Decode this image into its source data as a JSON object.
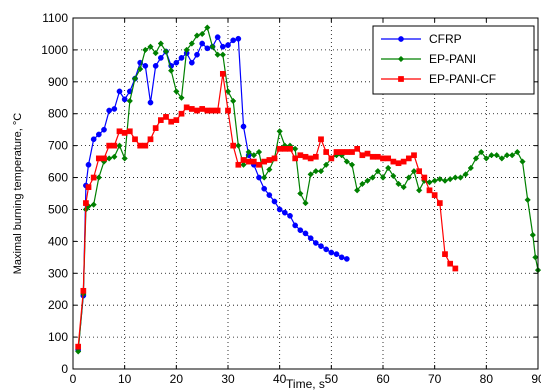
{
  "chart_data": {
    "type": "line",
    "title": "",
    "xlabel": "Time, s",
    "ylabel": "Maximal burning temperature, °C",
    "xlim": [
      0,
      90
    ],
    "ylim": [
      0,
      1100
    ],
    "xticks": [
      0,
      10,
      20,
      30,
      40,
      50,
      60,
      70,
      80,
      90
    ],
    "yticks": [
      0,
      100,
      200,
      300,
      400,
      500,
      600,
      700,
      800,
      900,
      1000,
      1100
    ],
    "grid": true,
    "legend_position": "top-right",
    "series": [
      {
        "name": "CFRP",
        "color": "#0000ff",
        "marker": "circle",
        "points": [
          [
            1,
            60
          ],
          [
            2,
            230
          ],
          [
            2.5,
            575
          ],
          [
            3,
            640
          ],
          [
            4,
            720
          ],
          [
            5,
            735
          ],
          [
            6,
            750
          ],
          [
            7,
            810
          ],
          [
            8,
            815
          ],
          [
            9,
            870
          ],
          [
            10,
            845
          ],
          [
            11,
            870
          ],
          [
            12,
            910
          ],
          [
            13,
            960
          ],
          [
            14,
            950
          ],
          [
            15,
            835
          ],
          [
            16,
            950
          ],
          [
            17,
            975
          ],
          [
            18,
            995
          ],
          [
            19,
            950
          ],
          [
            20,
            960
          ],
          [
            21,
            975
          ],
          [
            22,
            990
          ],
          [
            23,
            960
          ],
          [
            24,
            985
          ],
          [
            25,
            1020
          ],
          [
            26,
            1005
          ],
          [
            27,
            1010
          ],
          [
            28,
            1040
          ],
          [
            29,
            1010
          ],
          [
            30,
            1015
          ],
          [
            31,
            1030
          ],
          [
            32,
            1035
          ],
          [
            33,
            760
          ],
          [
            34,
            670
          ],
          [
            35,
            640
          ],
          [
            36,
            600
          ],
          [
            37,
            565
          ],
          [
            38,
            545
          ],
          [
            39,
            525
          ],
          [
            40,
            500
          ],
          [
            41,
            490
          ],
          [
            42,
            480
          ],
          [
            43,
            450
          ],
          [
            44,
            435
          ],
          [
            45,
            425
          ],
          [
            46,
            410
          ],
          [
            47,
            395
          ],
          [
            48,
            385
          ],
          [
            49,
            375
          ],
          [
            50,
            365
          ],
          [
            51,
            360
          ],
          [
            52,
            350
          ],
          [
            53,
            345
          ]
        ]
      },
      {
        "name": "EP-PANI",
        "color": "#008000",
        "marker": "diamond",
        "points": [
          [
            1,
            55
          ],
          [
            2,
            235
          ],
          [
            2.5,
            500
          ],
          [
            3,
            510
          ],
          [
            4,
            515
          ],
          [
            5,
            600
          ],
          [
            6,
            650
          ],
          [
            7,
            660
          ],
          [
            8,
            665
          ],
          [
            9,
            700
          ],
          [
            10,
            660
          ],
          [
            11,
            840
          ],
          [
            12,
            910
          ],
          [
            13,
            940
          ],
          [
            14,
            1000
          ],
          [
            15,
            1010
          ],
          [
            16,
            990
          ],
          [
            17,
            1020
          ],
          [
            18,
            995
          ],
          [
            19,
            935
          ],
          [
            20,
            870
          ],
          [
            21,
            850
          ],
          [
            22,
            1000
          ],
          [
            23,
            1020
          ],
          [
            24,
            1045
          ],
          [
            25,
            1050
          ],
          [
            26,
            1070
          ],
          [
            27,
            1010
          ],
          [
            28,
            985
          ],
          [
            29,
            985
          ],
          [
            30,
            870
          ],
          [
            31,
            840
          ],
          [
            32,
            700
          ],
          [
            33,
            640
          ],
          [
            34,
            680
          ],
          [
            35,
            670
          ],
          [
            36,
            680
          ],
          [
            37,
            600
          ],
          [
            38,
            625
          ],
          [
            39,
            660
          ],
          [
            40,
            745
          ],
          [
            41,
            700
          ],
          [
            42,
            700
          ],
          [
            43,
            690
          ],
          [
            44,
            550
          ],
          [
            45,
            520
          ],
          [
            46,
            610
          ],
          [
            47,
            620
          ],
          [
            48,
            620
          ],
          [
            49,
            640
          ],
          [
            50,
            660
          ],
          [
            51,
            670
          ],
          [
            52,
            670
          ],
          [
            53,
            650
          ],
          [
            54,
            640
          ],
          [
            55,
            560
          ],
          [
            56,
            580
          ],
          [
            57,
            590
          ],
          [
            58,
            600
          ],
          [
            59,
            620
          ],
          [
            60,
            600
          ],
          [
            61,
            630
          ],
          [
            62,
            605
          ],
          [
            63,
            580
          ],
          [
            64,
            570
          ],
          [
            65,
            600
          ],
          [
            66,
            620
          ],
          [
            67,
            560
          ],
          [
            68,
            590
          ],
          [
            69,
            585
          ],
          [
            70,
            590
          ],
          [
            71,
            595
          ],
          [
            72,
            590
          ],
          [
            73,
            595
          ],
          [
            74,
            600
          ],
          [
            75,
            600
          ],
          [
            76,
            610
          ],
          [
            77,
            630
          ],
          [
            78,
            660
          ],
          [
            79,
            680
          ],
          [
            80,
            660
          ],
          [
            81,
            670
          ],
          [
            82,
            670
          ],
          [
            83,
            660
          ],
          [
            84,
            670
          ],
          [
            85,
            670
          ],
          [
            86,
            680
          ],
          [
            87,
            650
          ],
          [
            88,
            530
          ],
          [
            89,
            420
          ],
          [
            89.5,
            350
          ],
          [
            90,
            310
          ]
        ]
      },
      {
        "name": "EP-PANI-CF",
        "color": "#ff0000",
        "marker": "square",
        "points": [
          [
            1,
            70
          ],
          [
            2,
            245
          ],
          [
            2.5,
            520
          ],
          [
            3,
            570
          ],
          [
            4,
            600
          ],
          [
            5,
            660
          ],
          [
            6,
            660
          ],
          [
            7,
            700
          ],
          [
            8,
            700
          ],
          [
            9,
            745
          ],
          [
            10,
            740
          ],
          [
            11,
            745
          ],
          [
            12,
            720
          ],
          [
            13,
            700
          ],
          [
            14,
            700
          ],
          [
            15,
            720
          ],
          [
            16,
            755
          ],
          [
            17,
            780
          ],
          [
            18,
            790
          ],
          [
            19,
            775
          ],
          [
            20,
            780
          ],
          [
            21,
            800
          ],
          [
            22,
            820
          ],
          [
            23,
            815
          ],
          [
            24,
            810
          ],
          [
            25,
            815
          ],
          [
            26,
            810
          ],
          [
            27,
            810
          ],
          [
            28,
            810
          ],
          [
            29,
            925
          ],
          [
            30,
            810
          ],
          [
            31,
            700
          ],
          [
            32,
            640
          ],
          [
            33,
            655
          ],
          [
            34,
            650
          ],
          [
            35,
            650
          ],
          [
            36,
            640
          ],
          [
            37,
            650
          ],
          [
            38,
            655
          ],
          [
            39,
            660
          ],
          [
            40,
            690
          ],
          [
            41,
            690
          ],
          [
            42,
            690
          ],
          [
            43,
            660
          ],
          [
            44,
            670
          ],
          [
            45,
            665
          ],
          [
            46,
            660
          ],
          [
            47,
            665
          ],
          [
            48,
            720
          ],
          [
            49,
            680
          ],
          [
            50,
            660
          ],
          [
            51,
            680
          ],
          [
            52,
            680
          ],
          [
            53,
            680
          ],
          [
            54,
            680
          ],
          [
            55,
            690
          ],
          [
            56,
            670
          ],
          [
            57,
            675
          ],
          [
            58,
            665
          ],
          [
            59,
            665
          ],
          [
            60,
            660
          ],
          [
            61,
            660
          ],
          [
            62,
            650
          ],
          [
            63,
            645
          ],
          [
            64,
            650
          ],
          [
            65,
            660
          ],
          [
            66,
            670
          ],
          [
            67,
            620
          ],
          [
            68,
            600
          ],
          [
            69,
            560
          ],
          [
            70,
            545
          ],
          [
            71,
            520
          ],
          [
            72,
            360
          ],
          [
            73,
            330
          ],
          [
            74,
            315
          ]
        ]
      }
    ]
  }
}
